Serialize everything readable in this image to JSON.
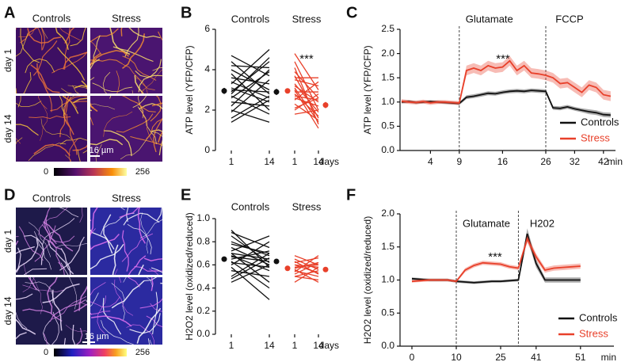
{
  "figure": {
    "letters": [
      "A",
      "B",
      "C",
      "D",
      "E",
      "F"
    ]
  },
  "images": [
    {
      "columns": [
        "Controls",
        "Stress"
      ],
      "rows": [
        "day 1",
        "day 14"
      ],
      "scale_bar": "16 µm",
      "colorbar": [
        0,
        256
      ]
    },
    {
      "columns": [
        "Controls",
        "Stress"
      ],
      "rows": [
        "day 1",
        "day 14"
      ],
      "scale_bar": "16 µm",
      "colorbar": [
        0,
        256
      ]
    }
  ],
  "chart_data": [
    {
      "type": "paired",
      "ylabel": "ATP level  (YFP/CFP)",
      "ylim": [
        0,
        6
      ],
      "yticks": [
        0,
        2,
        4,
        6
      ],
      "categories": [
        "1",
        "14",
        "1",
        "14"
      ],
      "x_label": "days",
      "annotation": "***",
      "series": [
        {
          "name": "Controls",
          "color": "#111111",
          "values": [
            [
              1.6,
              2.7
            ],
            [
              1.9,
              3.5
            ],
            [
              2.0,
              1.4
            ],
            [
              2.2,
              4.0
            ],
            [
              2.4,
              2.2
            ],
            [
              2.6,
              3.9
            ],
            [
              2.7,
              1.8
            ],
            [
              2.8,
              4.6
            ],
            [
              3.0,
              2.9
            ],
            [
              3.1,
              2.4
            ],
            [
              3.3,
              5.0
            ],
            [
              3.4,
              2.6
            ],
            [
              3.6,
              3.3
            ],
            [
              3.8,
              2.0
            ],
            [
              4.0,
              3.0
            ],
            [
              4.2,
              4.1
            ],
            [
              4.4,
              2.8
            ],
            [
              4.7,
              3.7
            ],
            [
              1.4,
              2.5
            ],
            [
              2.9,
              4.4
            ]
          ],
          "mean": [
            2.95,
            2.9
          ],
          "mean_error": [
            0.15,
            0.15
          ]
        },
        {
          "name": "Stress",
          "color": "#e8402a",
          "values": [
            [
              4.8,
              3.0
            ],
            [
              4.4,
              2.0
            ],
            [
              4.1,
              1.3
            ],
            [
              3.9,
              2.6
            ],
            [
              3.7,
              1.6
            ],
            [
              3.5,
              3.2
            ],
            [
              3.3,
              1.9
            ],
            [
              3.2,
              2.4
            ],
            [
              3.0,
              1.1
            ],
            [
              2.9,
              2.9
            ],
            [
              2.8,
              1.7
            ],
            [
              2.6,
              2.2
            ],
            [
              2.5,
              3.4
            ],
            [
              2.3,
              1.5
            ],
            [
              2.1,
              2.6
            ],
            [
              2.0,
              2.8
            ],
            [
              1.8,
              2.0
            ],
            [
              3.6,
              3.6
            ],
            [
              3.1,
              1.4
            ],
            [
              2.7,
              2.5
            ]
          ],
          "mean": [
            2.95,
            2.25
          ],
          "mean_error": [
            0.12,
            0.15
          ]
        }
      ]
    },
    {
      "type": "line",
      "ylabel": "ATP level  (YFP/CFP)",
      "ylim": [
        0,
        2.5
      ],
      "yticks": [
        {
          "value": 0,
          "label": "0.0"
        },
        0.5,
        {
          "value": 1,
          "label": "1.0"
        },
        1.5,
        {
          "value": 2,
          "label": "2.0"
        },
        2.5
      ],
      "categories": [
        null,
        null,
        null,
        null,
        "4",
        null,
        null,
        null,
        "9",
        null,
        null,
        null,
        null,
        null,
        "16",
        null,
        null,
        null,
        null,
        null,
        "26",
        null,
        null,
        null,
        "32",
        null,
        null,
        null,
        "42",
        null
      ],
      "x_label": "min",
      "annotation": "***",
      "legend": "lower right",
      "events": [
        {
          "label": "Glutamate",
          "at": 8
        },
        {
          "label": "FCCP",
          "at": 20
        }
      ],
      "series": [
        {
          "name": "Controls",
          "color": "#111111",
          "values": [
            1.0,
            1.01,
            0.99,
            1.0,
            1.01,
            1.0,
            0.99,
            0.98,
            0.97,
            1.1,
            1.12,
            1.15,
            1.18,
            1.17,
            1.2,
            1.22,
            1.23,
            1.22,
            1.24,
            1.23,
            1.22,
            0.88,
            0.87,
            0.9,
            0.86,
            0.83,
            0.8,
            0.78,
            0.74,
            0.73
          ],
          "errors": [
            0.03,
            0.03,
            0.03,
            0.03,
            0.03,
            0.03,
            0.03,
            0.03,
            0.03,
            0.04,
            0.04,
            0.04,
            0.04,
            0.04,
            0.04,
            0.04,
            0.04,
            0.04,
            0.04,
            0.04,
            0.04,
            0.04,
            0.04,
            0.04,
            0.04,
            0.04,
            0.05,
            0.05,
            0.05,
            0.05
          ]
        },
        {
          "name": "Stress",
          "color": "#e8402a",
          "values": [
            1.02,
            1.0,
            0.99,
            1.01,
            0.98,
            1.0,
            1.0,
            0.99,
            0.98,
            1.65,
            1.7,
            1.65,
            1.75,
            1.7,
            1.72,
            1.85,
            1.65,
            1.75,
            1.6,
            1.58,
            1.55,
            1.5,
            1.38,
            1.4,
            1.3,
            1.2,
            1.35,
            1.3,
            1.15,
            1.12
          ],
          "errors": [
            0.04,
            0.04,
            0.04,
            0.04,
            0.04,
            0.04,
            0.04,
            0.04,
            0.04,
            0.1,
            0.1,
            0.1,
            0.1,
            0.1,
            0.1,
            0.1,
            0.1,
            0.1,
            0.1,
            0.1,
            0.1,
            0.1,
            0.1,
            0.1,
            0.1,
            0.1,
            0.1,
            0.1,
            0.1,
            0.1
          ]
        }
      ]
    },
    {
      "type": "paired",
      "ylabel": "H2O2 level (oxidized/reduced)",
      "ylim": [
        0,
        1
      ],
      "yticks": [
        {
          "value": 0,
          "label": "0.0"
        },
        0.2,
        0.4,
        0.6,
        0.8,
        {
          "value": 1,
          "label": "1.0"
        }
      ],
      "categories": [
        "1",
        "14",
        "1",
        "14"
      ],
      "x_label": "days",
      "series": [
        {
          "name": "Controls",
          "color": "#111111",
          "values": [
            [
              0.45,
              0.6
            ],
            [
              0.5,
              0.7
            ],
            [
              0.55,
              0.5
            ],
            [
              0.6,
              0.8
            ],
            [
              0.62,
              0.58
            ],
            [
              0.65,
              0.72
            ],
            [
              0.68,
              0.55
            ],
            [
              0.7,
              0.65
            ],
            [
              0.72,
              0.85
            ],
            [
              0.75,
              0.6
            ],
            [
              0.8,
              0.68
            ],
            [
              0.85,
              0.62
            ],
            [
              0.88,
              0.75
            ],
            [
              0.9,
              0.58
            ],
            [
              0.58,
              0.3
            ],
            [
              0.63,
              0.4
            ],
            [
              0.7,
              0.45
            ],
            [
              0.48,
              0.66
            ],
            [
              0.78,
              0.7
            ],
            [
              0.67,
              0.63
            ]
          ],
          "mean": [
            0.65,
            0.63
          ],
          "mean_error": [
            0.02,
            0.02
          ]
        },
        {
          "name": "Stress",
          "color": "#e8402a",
          "values": [
            [
              0.45,
              0.58
            ],
            [
              0.5,
              0.55
            ],
            [
              0.52,
              0.62
            ],
            [
              0.55,
              0.5
            ],
            [
              0.58,
              0.6
            ],
            [
              0.6,
              0.53
            ],
            [
              0.62,
              0.66
            ],
            [
              0.65,
              0.56
            ],
            [
              0.68,
              0.6
            ],
            [
              0.56,
              0.45
            ],
            [
              0.54,
              0.68
            ],
            [
              0.6,
              0.58
            ],
            [
              0.63,
              0.52
            ],
            [
              0.57,
              0.62
            ],
            [
              0.5,
              0.47
            ]
          ],
          "mean": [
            0.57,
            0.56
          ],
          "mean_error": [
            0.015,
            0.015
          ]
        }
      ]
    },
    {
      "type": "line",
      "ylabel": "H2O2 level (oxidized/reduced)",
      "ylim": [
        0,
        2
      ],
      "yticks": [
        {
          "value": 0,
          "label": "0.0"
        },
        0.5,
        {
          "value": 1,
          "label": "1.0"
        },
        1.5,
        {
          "value": 2,
          "label": "2.0"
        }
      ],
      "categories": [
        "0",
        null,
        null,
        null,
        null,
        "10",
        null,
        null,
        null,
        null,
        "25",
        null,
        null,
        null,
        "41",
        null,
        null,
        null,
        null,
        "51"
      ],
      "x_label": "min",
      "annotation": "***",
      "legend": "lower right",
      "events": [
        {
          "label": "Glutamate",
          "at": 5
        },
        {
          "label": "H202",
          "at": 12
        }
      ],
      "series": [
        {
          "name": "Controls",
          "color": "#111111",
          "values": [
            1.02,
            1.01,
            1.0,
            1.0,
            1.0,
            0.98,
            0.97,
            0.96,
            0.97,
            0.98,
            0.98,
            0.99,
            1.0,
            1.7,
            1.25,
            1.0,
            1.0,
            1.0,
            1.0,
            1.0
          ],
          "errors": [
            0.02,
            0.02,
            0.02,
            0.02,
            0.02,
            0.02,
            0.02,
            0.02,
            0.02,
            0.02,
            0.02,
            0.02,
            0.02,
            0.08,
            0.06,
            0.04,
            0.04,
            0.04,
            0.04,
            0.04
          ]
        },
        {
          "name": "Stress",
          "color": "#e8402a",
          "values": [
            0.98,
            0.99,
            1.0,
            1.0,
            1.0,
            0.98,
            1.15,
            1.22,
            1.26,
            1.25,
            1.24,
            1.2,
            1.18,
            1.62,
            1.35,
            1.15,
            1.18,
            1.19,
            1.2,
            1.21
          ],
          "errors": [
            0.02,
            0.02,
            0.02,
            0.02,
            0.02,
            0.02,
            0.03,
            0.03,
            0.03,
            0.03,
            0.03,
            0.03,
            0.03,
            0.06,
            0.05,
            0.04,
            0.04,
            0.04,
            0.04,
            0.04
          ]
        }
      ]
    }
  ]
}
